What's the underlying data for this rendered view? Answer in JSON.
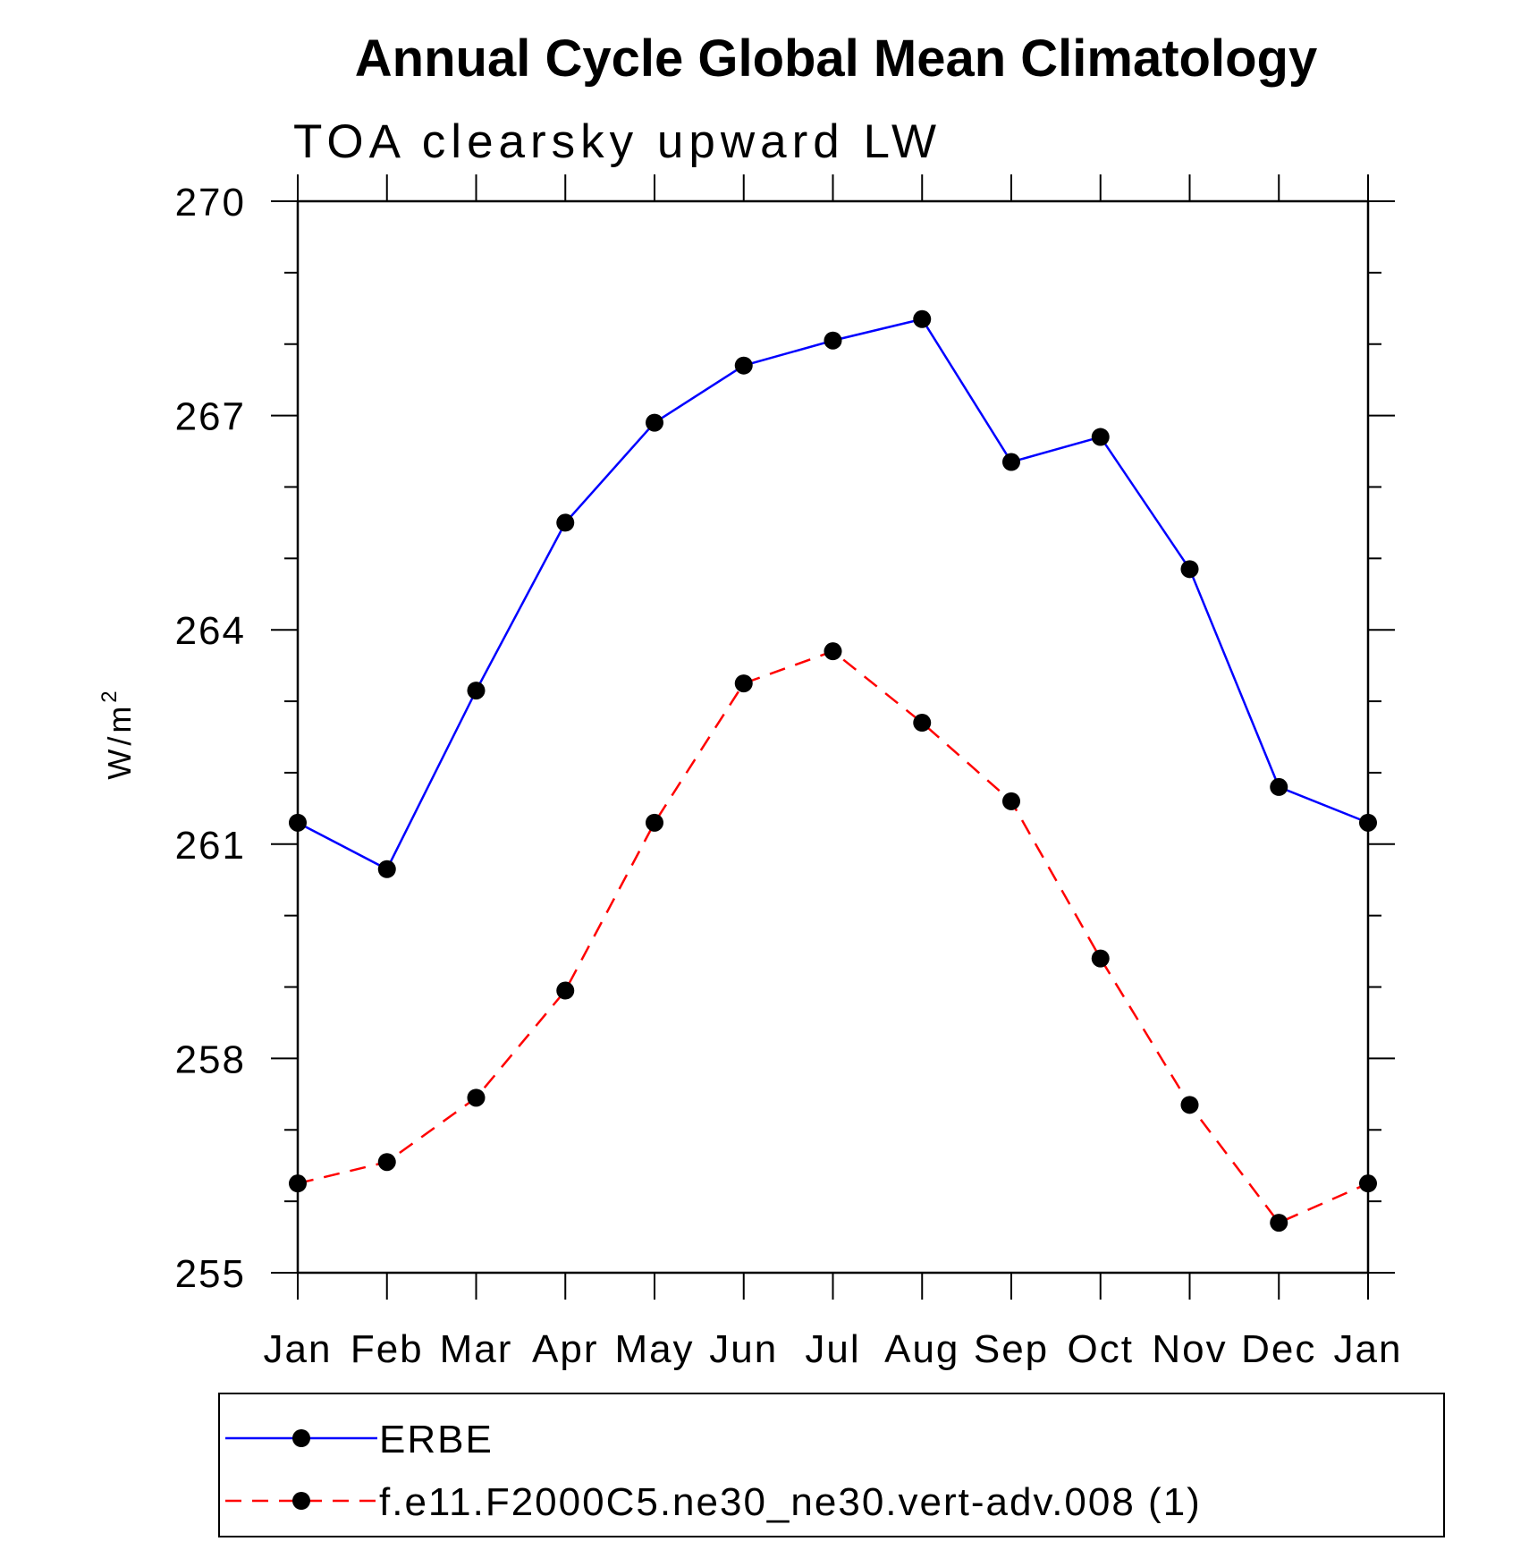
{
  "chart_data": {
    "type": "line",
    "title": "Annual Cycle Global Mean Climatology",
    "subtitle": "TOA clearsky upward LW",
    "ylabel": "W/m",
    "ylabel_superscript": "2",
    "xlabel": "",
    "categories": [
      "Jan",
      "Feb",
      "Mar",
      "Apr",
      "May",
      "Jun",
      "Jul",
      "Aug",
      "Sep",
      "Oct",
      "Nov",
      "Dec",
      "Jan"
    ],
    "ylim": [
      255,
      270
    ],
    "yticks": [
      "255",
      "258",
      "261",
      "264",
      "267",
      "270"
    ],
    "grid": false,
    "legend_position": "bottom",
    "series": [
      {
        "name": "ERBE",
        "color": "#0000ff",
        "line_style": "solid",
        "marker": "filled-circle",
        "values": [
          261.3,
          260.65,
          263.15,
          265.5,
          266.9,
          267.7,
          268.05,
          268.35,
          266.35,
          266.7,
          264.85,
          261.8,
          261.3
        ]
      },
      {
        "name": "f.e11.F2000C5.ne30_ne30.vert-adv.008 (1)",
        "color": "#ff0000",
        "line_style": "dashed",
        "marker": "filled-circle",
        "values": [
          256.25,
          256.55,
          257.45,
          258.95,
          261.3,
          263.25,
          263.7,
          262.7,
          261.6,
          259.4,
          257.35,
          255.7,
          256.25
        ]
      }
    ]
  }
}
